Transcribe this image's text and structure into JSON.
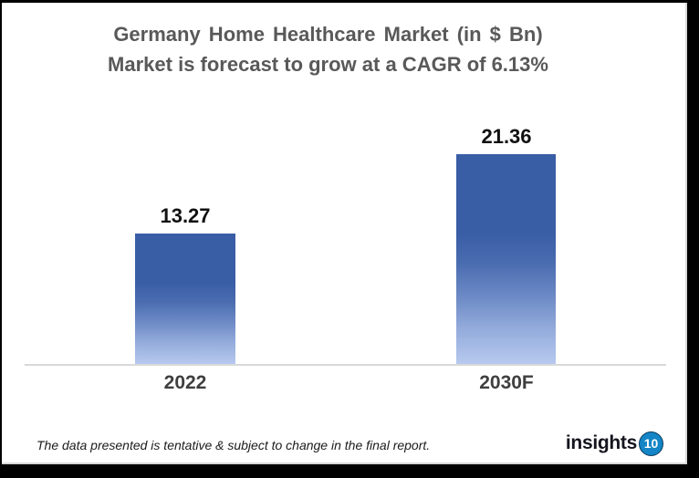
{
  "window": {
    "background": "#000000",
    "card_background": "#ffffff",
    "card_border_color": "#d9d9d9"
  },
  "chart_data": {
    "type": "bar",
    "title": "Germany Home Healthcare Market (in $ Bn)",
    "subtitle": "Market is forecast to grow at a CAGR of 6.13%",
    "categories": [
      "2022",
      "2030F"
    ],
    "values": [
      13.27,
      21.36
    ],
    "ylim": [
      0,
      24
    ],
    "grid": false,
    "legend": false,
    "axis_labels_visible": false,
    "data_labels_visible": true,
    "colors": {
      "title": "#595959",
      "value_label": "#111111",
      "category_label": "#3f3f3f",
      "axis_line": "#d9d9d9",
      "bar_gradient_top": "#3a5ea6",
      "bar_gradient_bottom": "#b7c9ef"
    }
  },
  "footer": {
    "note": "The data presented is tentative & subject to change in the final report.",
    "logo": {
      "text": "insights",
      "badge": "10",
      "badge_color": "#1485c6",
      "text_color": "#15151f"
    }
  }
}
